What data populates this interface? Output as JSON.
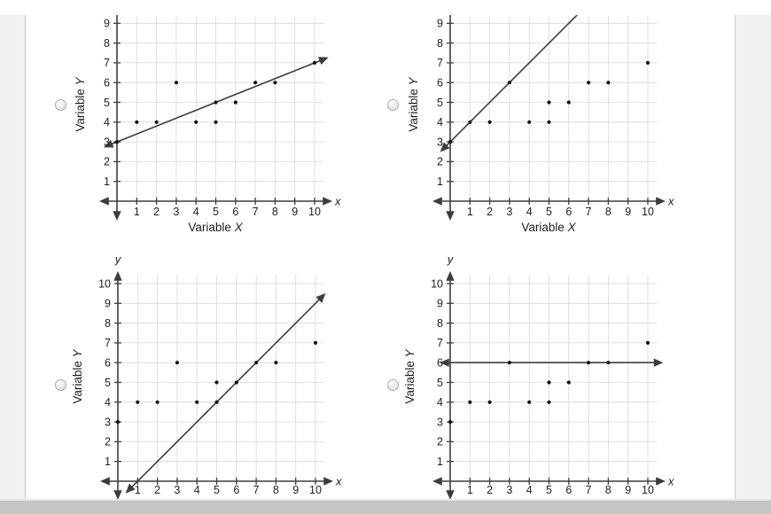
{
  "page": {
    "background": "#ffffff",
    "left_margin_color": "#f1f1f1",
    "right_margin_color": "#f1f1f1",
    "scrollbar_color": "#c5c5c5"
  },
  "style": {
    "axis_color": "#3d3d3d",
    "grid_color": "#d7d7d7",
    "point_color": "#121212",
    "trend_color": "#3d3d3d",
    "text_color": "#1e1e1e"
  },
  "question": {
    "answer_options": [
      {
        "index": 1,
        "position": "top-left",
        "selected": false
      },
      {
        "index": 2,
        "position": "top-right",
        "selected": false
      },
      {
        "index": 3,
        "position": "bottom-left",
        "selected": false
      },
      {
        "index": 4,
        "position": "bottom-right",
        "selected": false
      }
    ]
  },
  "chart_data": [
    {
      "option": 1,
      "type": "scatter",
      "points": [
        [
          0,
          3
        ],
        [
          1,
          4
        ],
        [
          2,
          4
        ],
        [
          3,
          6
        ],
        [
          4,
          4
        ],
        [
          5,
          4
        ],
        [
          5,
          5
        ],
        [
          6,
          5
        ],
        [
          7,
          6
        ],
        [
          8,
          6
        ],
        [
          10,
          7
        ]
      ],
      "trend_line": {
        "description": "y = 0.4x + 3",
        "slope": 0.4,
        "intercept": 3,
        "x_from": -0.6,
        "x_to": 10.62,
        "arrow_start": true,
        "arrow_end": true
      },
      "x_ticks": [
        1,
        2,
        3,
        4,
        5,
        6,
        7,
        8,
        9,
        10
      ],
      "y_ticks": [
        1,
        2,
        3,
        4,
        5,
        6,
        7,
        8,
        9
      ],
      "xlabel": "Variable X",
      "ylabel": "Variable Y",
      "x_axis_letter": "x",
      "y_axis_letter": null,
      "grid": true,
      "xlim": [
        0,
        10.7
      ],
      "ylim": [
        0,
        9.4
      ]
    },
    {
      "option": 2,
      "type": "scatter",
      "points": [
        [
          0,
          3
        ],
        [
          1,
          4
        ],
        [
          2,
          4
        ],
        [
          3,
          6
        ],
        [
          4,
          4
        ],
        [
          5,
          4
        ],
        [
          5,
          5
        ],
        [
          6,
          5
        ],
        [
          7,
          6
        ],
        [
          8,
          6
        ],
        [
          10,
          7
        ]
      ],
      "trend_line": {
        "description": "y = x + 3",
        "slope": 1,
        "intercept": 3,
        "x_from": -0.45,
        "x_to": 6.42,
        "arrow_start": true,
        "arrow_end": false
      },
      "x_ticks": [
        1,
        2,
        3,
        4,
        5,
        6,
        7,
        8,
        9,
        10
      ],
      "y_ticks": [
        1,
        2,
        3,
        4,
        5,
        6,
        7,
        8,
        9
      ],
      "xlabel": "Variable X",
      "ylabel": "Variable Y",
      "x_axis_letter": "x",
      "y_axis_letter": null,
      "grid": true,
      "xlim": [
        0,
        10.7
      ],
      "ylim": [
        0,
        9.4
      ]
    },
    {
      "option": 3,
      "type": "scatter",
      "points": [
        [
          0,
          3
        ],
        [
          1,
          4
        ],
        [
          2,
          4
        ],
        [
          3,
          6
        ],
        [
          4,
          4
        ],
        [
          5,
          4
        ],
        [
          5,
          5
        ],
        [
          6,
          5
        ],
        [
          7,
          6
        ],
        [
          8,
          6
        ],
        [
          10,
          7
        ]
      ],
      "trend_line": {
        "description": "y = x - 1",
        "slope": 1,
        "intercept": -1,
        "x_from": 0.45,
        "x_to": 10.45,
        "arrow_start": true,
        "arrow_end": true
      },
      "x_ticks": [
        1,
        2,
        3,
        4,
        5,
        6,
        7,
        8,
        9,
        10
      ],
      "y_ticks": [
        1,
        2,
        3,
        4,
        5,
        6,
        7,
        8,
        9,
        10
      ],
      "xlabel": null,
      "ylabel": "Variable Y",
      "x_axis_letter": "x",
      "y_axis_letter": "y",
      "grid": true,
      "xlim": [
        0,
        10.7
      ],
      "ylim": [
        0,
        10.5
      ]
    },
    {
      "option": 4,
      "type": "scatter",
      "points": [
        [
          0,
          3
        ],
        [
          1,
          4
        ],
        [
          2,
          4
        ],
        [
          3,
          6
        ],
        [
          4,
          4
        ],
        [
          5,
          4
        ],
        [
          5,
          5
        ],
        [
          6,
          5
        ],
        [
          7,
          6
        ],
        [
          8,
          6
        ],
        [
          10,
          7
        ]
      ],
      "trend_line": {
        "description": "y = 6",
        "slope": 0,
        "intercept": 6,
        "x_from": -0.45,
        "x_to": 10.7,
        "arrow_start": true,
        "arrow_end": true
      },
      "x_ticks": [
        1,
        2,
        3,
        4,
        5,
        6,
        7,
        8,
        9,
        10
      ],
      "y_ticks": [
        1,
        2,
        3,
        4,
        5,
        6,
        7,
        8,
        9,
        10
      ],
      "xlabel": null,
      "ylabel": "Variable Y",
      "x_axis_letter": "x",
      "y_axis_letter": "y",
      "grid": true,
      "xlim": [
        0,
        10.7
      ],
      "ylim": [
        0,
        10.5
      ]
    }
  ]
}
